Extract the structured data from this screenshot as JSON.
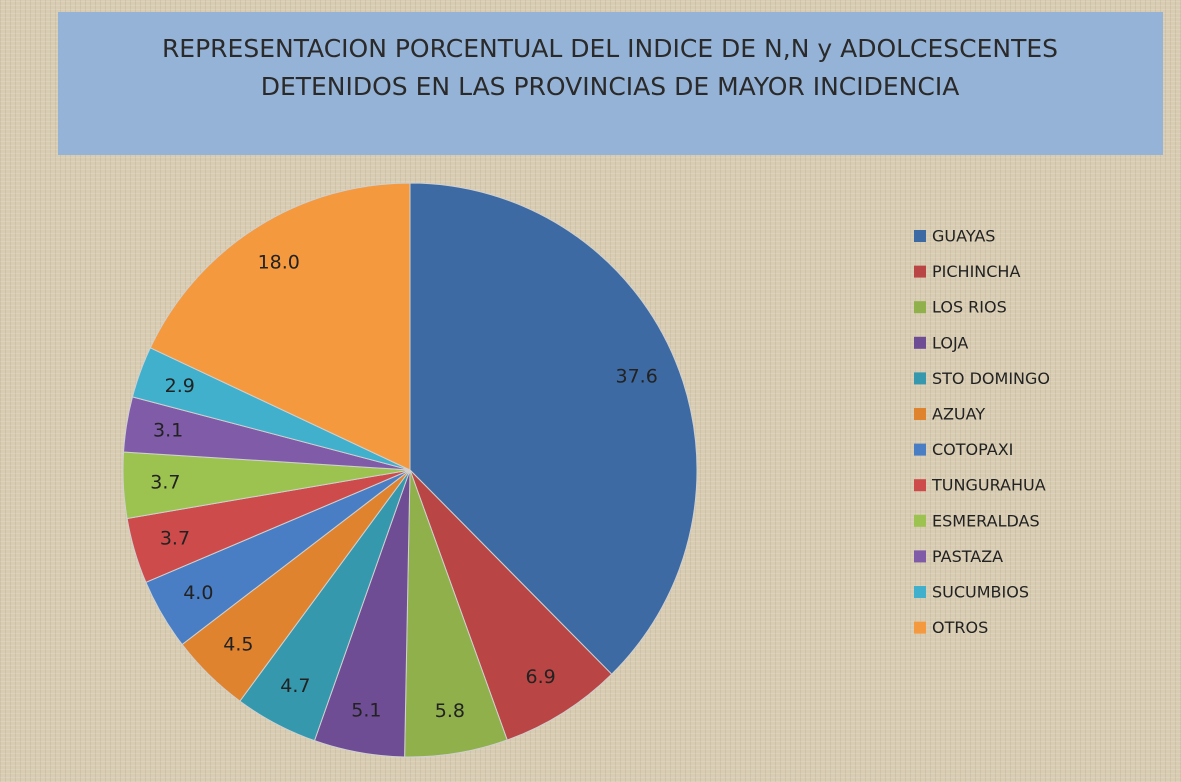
{
  "chart_data": {
    "type": "pie",
    "title": [
      "REPRESENTACION PORCENTUAL DEL INDICE DE N,N y ADOLCESCENTES",
      "DETENIDOS EN LAS PROVINCIAS  DE MAYOR INCIDENCIA"
    ],
    "categories": [
      "GUAYAS",
      "PICHINCHA",
      "LOS RIOS",
      "LOJA",
      "STO DOMINGO",
      "AZUAY",
      "COTOPAXI",
      "TUNGURAHUA",
      "ESMERALDAS",
      "PASTAZA",
      "SUCUMBIOS",
      "OTROS"
    ],
    "values": [
      37.6,
      6.9,
      5.8,
      5.1,
      4.7,
      4.5,
      4.0,
      3.7,
      3.7,
      3.1,
      2.9,
      18.0
    ],
    "value_labels": [
      "37.6",
      "6.9",
      "5.8",
      "5.1",
      "4.7",
      "4.5",
      "4.0",
      "3.7",
      "3.7",
      "3.1",
      "2.9",
      "18.0"
    ],
    "colors": [
      "#3e6aa3",
      "#b94644",
      "#8fb04a",
      "#6f4d94",
      "#3598ad",
      "#e0832f",
      "#4a7ec4",
      "#cd4b4b",
      "#9cc250",
      "#7f5ba8",
      "#40b0cc",
      "#f5993f"
    ],
    "legend": "right"
  }
}
